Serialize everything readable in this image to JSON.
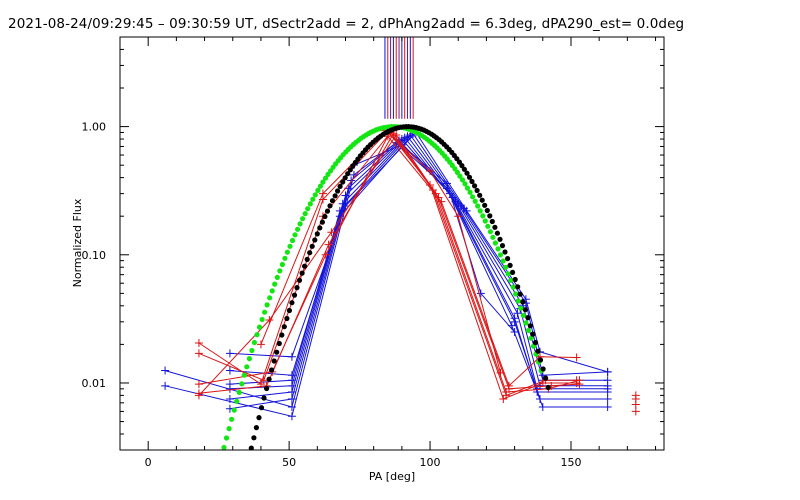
{
  "chart_data": {
    "type": "line",
    "title": "2021-08-24/09:29:45 – 09:30:59 UT, dSectr2add = 2, dPhAng2add = 6.3deg, dPA290_est=  0.0deg",
    "xlabel": "PA [deg]",
    "ylabel": "Normalized Flux",
    "xlim": [
      -10,
      183
    ],
    "ylim": [
      0.003,
      5.0
    ],
    "yscale": "log",
    "x_ticks": [
      0,
      50,
      100,
      150
    ],
    "x_tick_labels": [
      "0",
      "50",
      "100",
      "150"
    ],
    "y_ticks": [
      0.01,
      0.1,
      1.0
    ],
    "y_tick_labels": [
      "0.01",
      "0.10",
      "1.00"
    ],
    "grid": false,
    "legend": "none",
    "colors": {
      "blue": "#1414d8",
      "red": "#dc1414",
      "green": "#14e614",
      "black": "#000000",
      "purple": "#6a1a9a"
    },
    "series": [
      {
        "color": "blue",
        "x": [
          6,
          51,
          73,
          88,
          106,
          129,
          140,
          163
        ],
        "y": [
          0.0095,
          0.0055,
          0.42,
          0.75,
          0.33,
          0.028,
          0.0065,
          0.0065
        ]
      },
      {
        "color": "blue",
        "x": [
          6,
          51,
          72,
          89,
          107,
          130,
          139,
          163
        ],
        "y": [
          0.0125,
          0.0065,
          0.38,
          0.78,
          0.3,
          0.03,
          0.0075,
          0.0075
        ]
      },
      {
        "color": "blue",
        "x": [
          29,
          51,
          71,
          90,
          108,
          130,
          138,
          163
        ],
        "y": [
          0.0063,
          0.0075,
          0.33,
          0.8,
          0.28,
          0.032,
          0.0085,
          0.0085
        ]
      },
      {
        "color": "blue",
        "x": [
          29,
          51,
          70,
          91,
          109,
          131,
          138,
          163
        ],
        "y": [
          0.0075,
          0.0085,
          0.29,
          0.82,
          0.26,
          0.035,
          0.009,
          0.009
        ]
      },
      {
        "color": "blue",
        "x": [
          29,
          51,
          69,
          92,
          110,
          132,
          139,
          163
        ],
        "y": [
          0.009,
          0.0095,
          0.25,
          0.84,
          0.25,
          0.038,
          0.0095,
          0.0095
        ]
      },
      {
        "color": "blue",
        "x": [
          29,
          51,
          68,
          93,
          111,
          133,
          140,
          163
        ],
        "y": [
          0.0098,
          0.0105,
          0.22,
          0.86,
          0.24,
          0.04,
          0.0105,
          0.0105
        ]
      },
      {
        "color": "blue",
        "x": [
          29,
          51,
          68,
          94,
          112,
          134,
          140,
          163
        ],
        "y": [
          0.0125,
          0.0115,
          0.2,
          0.88,
          0.23,
          0.042,
          0.0115,
          0.0122
        ]
      },
      {
        "color": "blue",
        "x": [
          29,
          51,
          70,
          95,
          113,
          134,
          139,
          163
        ],
        "y": [
          0.017,
          0.016,
          0.24,
          0.9,
          0.22,
          0.045,
          0.0175,
          0.0122
        ]
      },
      {
        "color": "blue",
        "x": [
          73,
          90,
          106,
          118,
          130
        ],
        "y": [
          0.5,
          0.72,
          0.36,
          0.05,
          0.025
        ]
      },
      {
        "color": "red",
        "x": [
          18,
          40,
          62,
          85,
          100,
          126,
          140,
          152
        ],
        "y": [
          0.0205,
          0.0098,
          0.27,
          0.92,
          0.35,
          0.0075,
          0.01,
          0.01
        ]
      },
      {
        "color": "red",
        "x": [
          18,
          41,
          62,
          86,
          101,
          127,
          141,
          152
        ],
        "y": [
          0.017,
          0.0105,
          0.2,
          0.9,
          0.32,
          0.008,
          0.0105,
          0.0105
        ]
      },
      {
        "color": "red",
        "x": [
          18,
          42,
          64,
          87,
          102,
          127,
          142,
          153
        ],
        "y": [
          0.0083,
          0.0095,
          0.12,
          0.88,
          0.3,
          0.0085,
          0.009,
          0.0105
        ]
      },
      {
        "color": "red",
        "x": [
          18,
          43,
          65,
          88,
          103,
          128,
          143,
          153
        ],
        "y": [
          0.008,
          0.031,
          0.15,
          0.86,
          0.28,
          0.009,
          0.0095,
          0.0098
        ]
      },
      {
        "color": "red",
        "x": [
          18,
          44,
          63,
          85,
          104,
          128,
          139,
          152
        ],
        "y": [
          0.0098,
          0.0122,
          0.1,
          0.84,
          0.26,
          0.0095,
          0.016,
          0.0158
        ]
      },
      {
        "color": "red",
        "x": [
          40,
          62,
          84,
          100,
          110,
          125
        ],
        "y": [
          0.02,
          0.3,
          0.93,
          0.45,
          0.2,
          0.012
        ]
      },
      {
        "color": "red",
        "x": [
          173
        ],
        "y": [
          0.008
        ],
        "markers_only": true
      },
      {
        "color": "red",
        "x": [
          173
        ],
        "y": [
          0.0075
        ],
        "markers_only": true
      },
      {
        "color": "red",
        "x": [
          173
        ],
        "y": [
          0.0068
        ],
        "markers_only": true
      },
      {
        "color": "red",
        "x": [
          173
        ],
        "y": [
          0.006
        ],
        "markers_only": true
      }
    ],
    "fits": [
      {
        "name": "green-gaussian",
        "color": "green",
        "center": 87,
        "sigma": 17.7,
        "peak": 1.0,
        "x_range": [
          26,
          140
        ]
      },
      {
        "name": "black-gaussian",
        "color": "black",
        "center": 92,
        "sigma": 16.3,
        "peak": 1.0,
        "x_range": [
          33,
          142
        ]
      }
    ],
    "vertical_markers": {
      "x": [
        84,
        85,
        86,
        87,
        88,
        89,
        90,
        91,
        92,
        93,
        94
      ],
      "colors": [
        "blue",
        "red",
        "purple",
        "blue",
        "red",
        "purple",
        "blue",
        "red",
        "purple",
        "blue",
        "red"
      ],
      "y_range": [
        1.15,
        5.0
      ]
    }
  }
}
